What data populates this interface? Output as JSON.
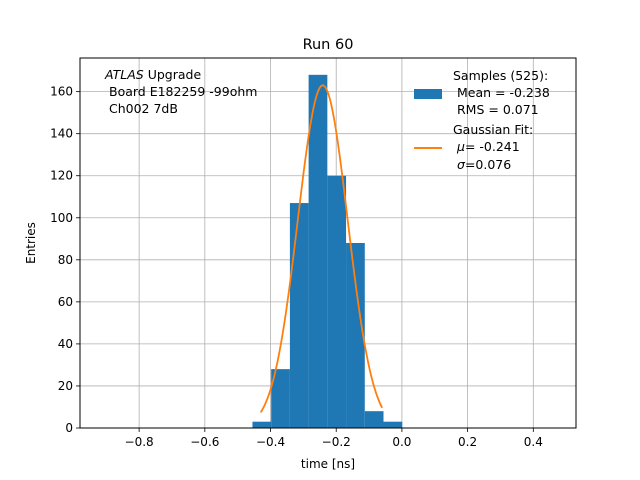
{
  "chart_data": {
    "type": "bar",
    "title": "Run 60",
    "xlabel": "time [ns]",
    "ylabel": "Entries",
    "xlim": [
      -0.98,
      0.53
    ],
    "ylim": [
      0,
      176
    ],
    "grid": true,
    "x_ticks": [
      -0.8,
      -0.6,
      -0.4,
      -0.2,
      0.0,
      0.2,
      0.4
    ],
    "x_tick_labels": [
      "−0.8",
      "−0.6",
      "−0.4",
      "−0.2",
      "0.0",
      "0.2",
      "0.4"
    ],
    "y_ticks": [
      0,
      20,
      40,
      60,
      80,
      100,
      120,
      140,
      160
    ],
    "y_tick_labels": [
      "0",
      "20",
      "40",
      "60",
      "80",
      "100",
      "120",
      "140",
      "160"
    ],
    "histogram": {
      "color": "#1f77b4",
      "bin_edges": [
        -0.455,
        -0.398,
        -0.341,
        -0.284,
        -0.227,
        -0.17,
        -0.113,
        -0.056,
        0.001
      ],
      "counts": [
        3,
        28,
        107,
        168,
        120,
        88,
        8,
        3
      ]
    },
    "fit": {
      "color": "#ff7f0e",
      "mu": -0.241,
      "sigma": 0.076,
      "amplitude": 163,
      "x_range": [
        -0.43,
        -0.06
      ]
    },
    "annotation": {
      "line1_italic": "ATLAS",
      "line1_rest": " Upgrade",
      "line2": "Board E182259 -99ohm",
      "line3": "Ch002 7dB"
    },
    "legend": {
      "position": "top-right",
      "samples_title": "Samples (525):",
      "samples_mean": "Mean = -0.238",
      "samples_rms": "RMS = 0.071",
      "fit_title": "Gaussian Fit:",
      "fit_mu": "= -0.241",
      "fit_sigma": "=0.076"
    }
  }
}
